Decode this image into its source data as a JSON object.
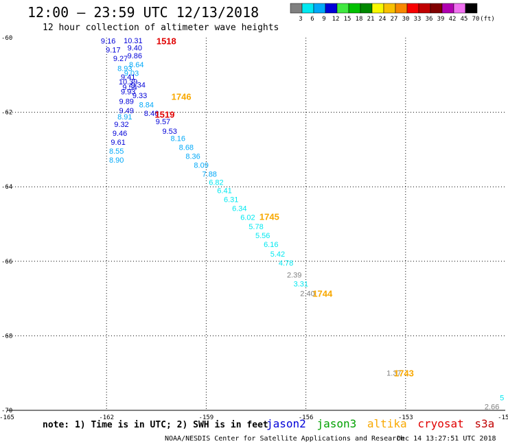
{
  "header": {
    "title": "12:00 – 23:59 UTC 12/13/2018",
    "subtitle": "12 hour collection of altimeter wave heights"
  },
  "colorscale": {
    "labels": [
      "3",
      "6",
      "9",
      "12",
      "15",
      "18",
      "21",
      "24",
      "27",
      "30",
      "33",
      "36",
      "39",
      "42",
      "45",
      "70",
      "(ft)"
    ],
    "colors": [
      "#808080",
      "#00e8f0",
      "#00a8f8",
      "#0000d8",
      "#40e840",
      "#00c000",
      "#008800",
      "#f8f800",
      "#f8c000",
      "#f88800",
      "#f80000",
      "#c00000",
      "#800000",
      "#b000b0",
      "#f070f0",
      "#000000"
    ]
  },
  "footer": {
    "note": "note: 1) Time is in UTC; 2) SWH is in feet",
    "satellites": [
      {
        "name": "jason2",
        "color": "#0000d8"
      },
      {
        "name": "jason3",
        "color": "#00a000"
      },
      {
        "name": "altika",
        "color": "#f8a800"
      },
      {
        "name": "cryosat",
        "color": "#e00000"
      },
      {
        "name": "s3a",
        "color": "#c00000"
      }
    ],
    "credit": "NOAA/NESDIS Center for Satellite Applications and Research",
    "timestamp": "Dec 14 13:27:51 UTC 2018"
  },
  "chart_data": {
    "type": "scatter",
    "xlim": [
      -165,
      -150
    ],
    "ylim": [
      -70,
      -60
    ],
    "x_ticks": [
      -165,
      -162,
      -159,
      -156,
      -153,
      -150
    ],
    "y_ticks": [
      -60,
      -62,
      -64,
      -66,
      -68,
      -70
    ],
    "grid": true,
    "points": [
      {
        "x": -161.95,
        "y": -60.08,
        "label": "9.16",
        "color": "#0000d8"
      },
      {
        "x": -161.2,
        "y": -60.07,
        "label": "10.31",
        "color": "#0000d8"
      },
      {
        "x": -161.15,
        "y": -60.27,
        "label": "9.40",
        "color": "#0000d8"
      },
      {
        "x": -161.8,
        "y": -60.32,
        "label": "9.17",
        "color": "#0000d8"
      },
      {
        "x": -161.15,
        "y": -60.48,
        "label": "9.86",
        "color": "#0000d8"
      },
      {
        "x": -161.58,
        "y": -60.55,
        "label": "9.27",
        "color": "#0000d8"
      },
      {
        "x": -161.1,
        "y": -60.72,
        "label": "8.64",
        "color": "#00a8f8"
      },
      {
        "x": -161.45,
        "y": -60.82,
        "label": "8.93",
        "color": "#00a8f8"
      },
      {
        "x": -161.25,
        "y": -60.95,
        "label": "9.03",
        "color": "#00a8f8"
      },
      {
        "x": -161.35,
        "y": -61.05,
        "label": "9.41",
        "color": "#0000d8"
      },
      {
        "x": -161.35,
        "y": -61.18,
        "label": "10.39",
        "color": "#0000d8"
      },
      {
        "x": -161.05,
        "y": -61.26,
        "label": "9.34",
        "color": "#0000d8"
      },
      {
        "x": -161.3,
        "y": -61.33,
        "label": "9.54",
        "color": "#0000d8"
      },
      {
        "x": -161.35,
        "y": -61.45,
        "label": "9.93",
        "color": "#0000d8"
      },
      {
        "x": -161.0,
        "y": -61.55,
        "label": "9.33",
        "color": "#0000d8"
      },
      {
        "x": -161.4,
        "y": -61.7,
        "label": "9.89",
        "color": "#0000d8"
      },
      {
        "x": -160.8,
        "y": -61.8,
        "label": "8.84",
        "color": "#00a8f8"
      },
      {
        "x": -161.4,
        "y": -61.95,
        "label": "9.49",
        "color": "#0000d8"
      },
      {
        "x": -160.65,
        "y": -62.03,
        "label": "8.46",
        "color": "#0000d8"
      },
      {
        "x": -161.45,
        "y": -62.12,
        "label": "8.91",
        "color": "#00a8f8"
      },
      {
        "x": -160.3,
        "y": -62.25,
        "label": "9.57",
        "color": "#0000d8"
      },
      {
        "x": -161.55,
        "y": -62.32,
        "label": "9.32",
        "color": "#0000d8"
      },
      {
        "x": -160.1,
        "y": -62.5,
        "label": "9.53",
        "color": "#0000d8"
      },
      {
        "x": -161.6,
        "y": -62.56,
        "label": "9.46",
        "color": "#0000d8"
      },
      {
        "x": -159.85,
        "y": -62.7,
        "label": "8.16",
        "color": "#00a8f8"
      },
      {
        "x": -161.65,
        "y": -62.8,
        "label": "9.61",
        "color": "#0000d8"
      },
      {
        "x": -159.6,
        "y": -62.94,
        "label": "8.68",
        "color": "#00a8f8"
      },
      {
        "x": -161.7,
        "y": -63.04,
        "label": "8.55",
        "color": "#00a8f8"
      },
      {
        "x": -159.4,
        "y": -63.18,
        "label": "8.36",
        "color": "#00a8f8"
      },
      {
        "x": -161.7,
        "y": -63.28,
        "label": "8.90",
        "color": "#00a8f8"
      },
      {
        "x": -159.15,
        "y": -63.42,
        "label": "8.09",
        "color": "#00a8f8"
      },
      {
        "x": -158.9,
        "y": -63.66,
        "label": "7.88",
        "color": "#00a8f8"
      },
      {
        "x": -158.7,
        "y": -63.88,
        "label": "6.82",
        "color": "#00e8f0"
      },
      {
        "x": -158.45,
        "y": -64.1,
        "label": "6.41",
        "color": "#00e8f0"
      },
      {
        "x": -158.25,
        "y": -64.34,
        "label": "6.31",
        "color": "#00e8f0"
      },
      {
        "x": -158.0,
        "y": -64.58,
        "label": "6.34",
        "color": "#00e8f0"
      },
      {
        "x": -157.75,
        "y": -64.82,
        "label": "6.02",
        "color": "#00e8f0"
      },
      {
        "x": -157.5,
        "y": -65.06,
        "label": "5.78",
        "color": "#00e8f0"
      },
      {
        "x": -157.3,
        "y": -65.3,
        "label": "5.56",
        "color": "#00e8f0"
      },
      {
        "x": -157.05,
        "y": -65.54,
        "label": "6.16",
        "color": "#00e8f0"
      },
      {
        "x": -156.85,
        "y": -65.8,
        "label": "5.42",
        "color": "#00e8f0"
      },
      {
        "x": -156.6,
        "y": -66.04,
        "label": "4.78",
        "color": "#00e8f0"
      },
      {
        "x": -156.35,
        "y": -66.36,
        "label": "2.39",
        "color": "#808080"
      },
      {
        "x": -156.15,
        "y": -66.6,
        "label": "3.31",
        "color": "#00e8f0"
      },
      {
        "x": -155.95,
        "y": -66.86,
        "label": "2.40",
        "color": "#808080"
      },
      {
        "x": -153.35,
        "y": -69.0,
        "label": "1.37",
        "color": "#808080"
      },
      {
        "x": -150.4,
        "y": -69.9,
        "label": "2.66",
        "color": "#808080"
      },
      {
        "x": -150.1,
        "y": -69.66,
        "label": "5",
        "color": "#00e8f0"
      }
    ],
    "pass_labels": [
      {
        "x": -160.2,
        "y": -60.08,
        "label": "1518",
        "color": "#e00000"
      },
      {
        "x": -159.75,
        "y": -61.57,
        "label": "1746",
        "color": "#f8a800"
      },
      {
        "x": -160.25,
        "y": -62.05,
        "label": "1519",
        "color": "#e00000"
      },
      {
        "x": -157.1,
        "y": -64.8,
        "label": "1745",
        "color": "#f8a800"
      },
      {
        "x": -155.5,
        "y": -66.86,
        "label": "1744",
        "color": "#f8a800"
      },
      {
        "x": -153.05,
        "y": -69.0,
        "label": "1743",
        "color": "#f8a800"
      }
    ]
  }
}
